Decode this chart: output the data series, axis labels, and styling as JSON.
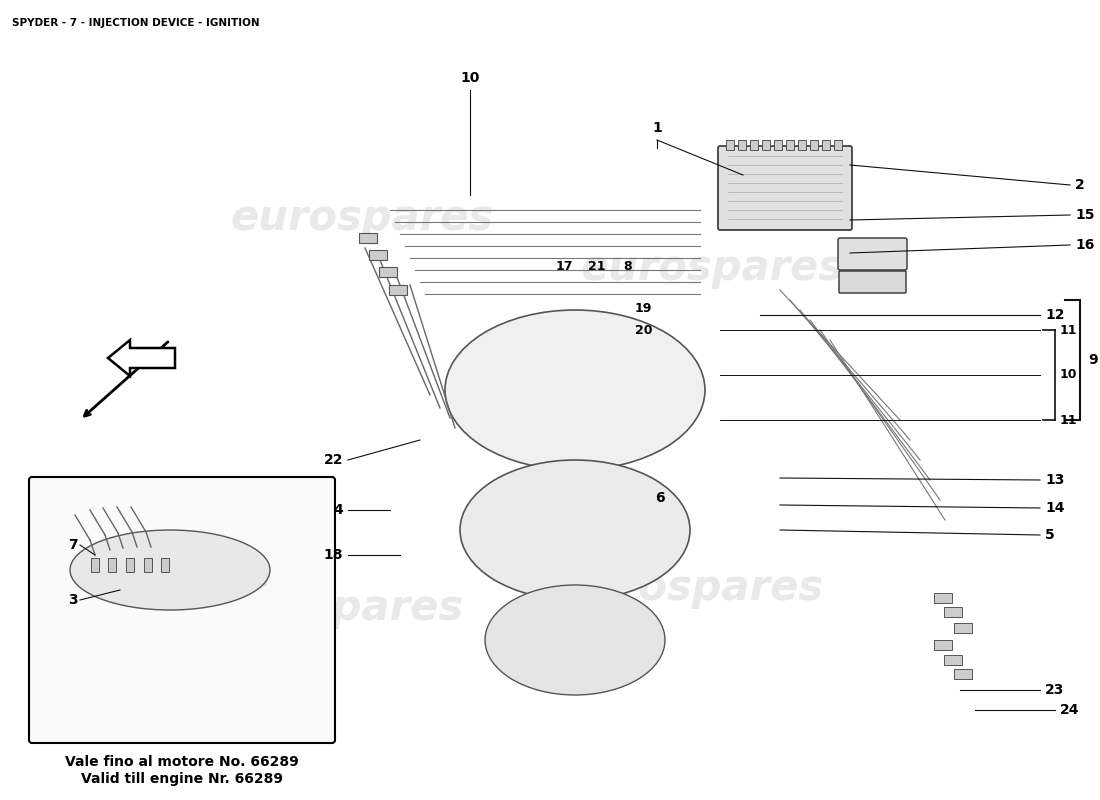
{
  "title": "SPYDER - 7 - INJECTION DEVICE - IGNITION",
  "title_fontsize": 7.5,
  "title_color": "#000000",
  "background_color": "#ffffff",
  "watermark_text": "eurospares",
  "inset_caption_line1": "Vale fino al motore No. 66289",
  "inset_caption_line2": "Valid till engine Nr. 66289",
  "line_color": "#111111",
  "text_color": "#000000",
  "callout_fontsize": 10,
  "callout_bold": true,
  "diagram_gray": "#e8e8e8",
  "diagram_edge": "#555555"
}
